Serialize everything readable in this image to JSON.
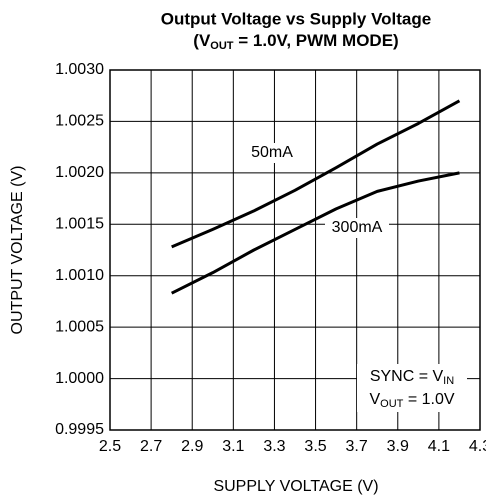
{
  "chart_data": {
    "type": "line",
    "title": "Output Voltage vs Supply Voltage",
    "subtitle": [
      "(V",
      "OUT",
      " = 1.0V, PWM MODE)"
    ],
    "xlabel": "SUPPLY VOLTAGE (V)",
    "ylabel": "OUTPUT VOLTAGE (V)",
    "annotations": [
      [
        "SYNC = V",
        "IN"
      ],
      [
        "V",
        "OUT",
        " = 1.0V"
      ]
    ],
    "x": [
      2.8,
      3.0,
      3.2,
      3.4,
      3.6,
      3.8,
      4.0,
      4.2
    ],
    "series": [
      {
        "name": "50mA",
        "color": "#000000",
        "values": [
          1.00128,
          1.00145,
          1.00163,
          1.00183,
          1.00205,
          1.00228,
          1.00248,
          1.0027
        ]
      },
      {
        "name": "300mA",
        "color": "#000000",
        "values": [
          1.00083,
          1.00103,
          1.00125,
          1.00145,
          1.00165,
          1.00182,
          1.00192,
          1.002
        ]
      }
    ],
    "xlim": [
      2.5,
      4.3
    ],
    "xticks": [
      2.5,
      2.7,
      2.9,
      3.1,
      3.3,
      3.5,
      3.7,
      3.9,
      4.1,
      4.3
    ],
    "ylim": [
      0.9995,
      1.003
    ],
    "yticks": [
      {
        "value": 0.9995,
        "label": "0.9995"
      },
      {
        "value": 1.0,
        "label": "1.0000"
      },
      {
        "value": 1.0005,
        "label": "1.0005"
      },
      {
        "value": 1.001,
        "label": "1.0010"
      },
      {
        "value": 1.0015,
        "label": "1.0015"
      },
      {
        "value": 1.002,
        "label": "1.0020"
      },
      {
        "value": 1.0025,
        "label": "1.0025"
      },
      {
        "value": 1.003,
        "label": "1.0030"
      }
    ],
    "grid": true
  }
}
